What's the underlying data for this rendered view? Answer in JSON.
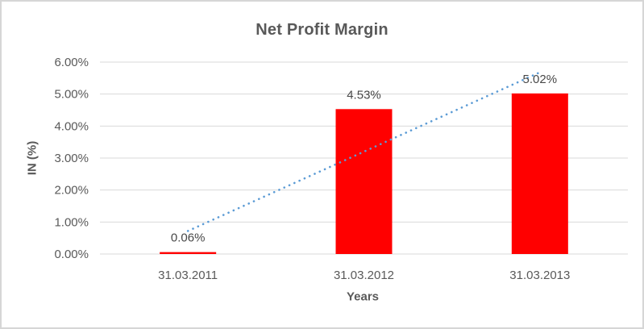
{
  "chart_data": {
    "type": "bar",
    "title": "Net Profit Margin",
    "xlabel": "Years",
    "ylabel": "IN (%)",
    "categories": [
      "31.03.2011",
      "31.03.2012",
      "31.03.2013"
    ],
    "values": [
      0.06,
      4.53,
      5.02
    ],
    "data_labels": [
      "0.06%",
      "4.53%",
      "5.02%"
    ],
    "ylim": [
      0,
      6
    ],
    "ytick_step": 1,
    "ytick_labels": [
      "0.00%",
      "1.00%",
      "2.00%",
      "3.00%",
      "4.00%",
      "5.00%",
      "6.00%"
    ],
    "grid": "horizontal",
    "legend": "none",
    "bar_color": "#FF0000",
    "gridline_color": "#D9D9D9",
    "text_color": "#595959",
    "data_label_color": "#474747",
    "trendline": {
      "type": "linear",
      "style": "dotted",
      "color": "#5B9BD5",
      "start_value": 0.72,
      "end_value": 5.68
    }
  }
}
